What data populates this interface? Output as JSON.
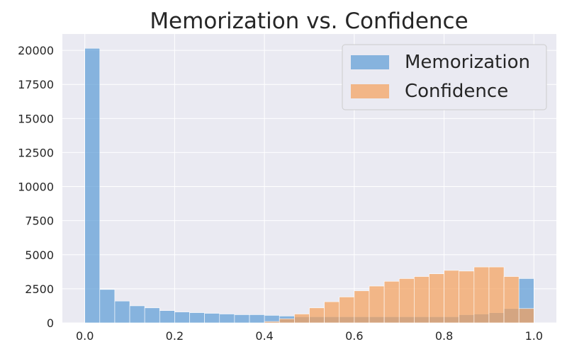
{
  "chart_data": {
    "type": "bar",
    "title": "Memorization vs. Confidence",
    "xlabel": "",
    "ylabel": "",
    "xlim": [
      -0.05,
      1.05
    ],
    "ylim": [
      0,
      21200
    ],
    "x_ticks": [
      "0.0",
      "0.2",
      "0.4",
      "0.6",
      "0.8",
      "1.0"
    ],
    "y_ticks": [
      "0",
      "2500",
      "5000",
      "7500",
      "10000",
      "12500",
      "15000",
      "17500",
      "20000"
    ],
    "grid": true,
    "legend_position": "top-right",
    "bin_width": 0.0333,
    "bin_starts": [
      0.0,
      0.0333,
      0.0667,
      0.1,
      0.1333,
      0.1667,
      0.2,
      0.2333,
      0.2667,
      0.3,
      0.3333,
      0.3667,
      0.4,
      0.4333,
      0.4667,
      0.5,
      0.5333,
      0.5667,
      0.6,
      0.6333,
      0.6667,
      0.7,
      0.7333,
      0.7667,
      0.8,
      0.8333,
      0.8667,
      0.9,
      0.9333,
      0.9667
    ],
    "series": [
      {
        "name": "Memorization",
        "color": "#5b9bd5",
        "values": [
          20150,
          2450,
          1600,
          1250,
          1100,
          900,
          800,
          750,
          700,
          650,
          600,
          600,
          550,
          500,
          450,
          450,
          450,
          450,
          450,
          450,
          450,
          450,
          450,
          450,
          450,
          600,
          650,
          750,
          1050,
          3250
        ]
      },
      {
        "name": "Confidence",
        "color": "#f5a05a",
        "values": [
          0,
          0,
          0,
          0,
          0,
          0,
          0,
          0,
          0,
          0,
          0,
          0,
          100,
          300,
          650,
          1100,
          1550,
          1900,
          2350,
          2700,
          3050,
          3250,
          3400,
          3600,
          3850,
          3800,
          4100,
          4100,
          3400,
          1050
        ]
      }
    ]
  }
}
